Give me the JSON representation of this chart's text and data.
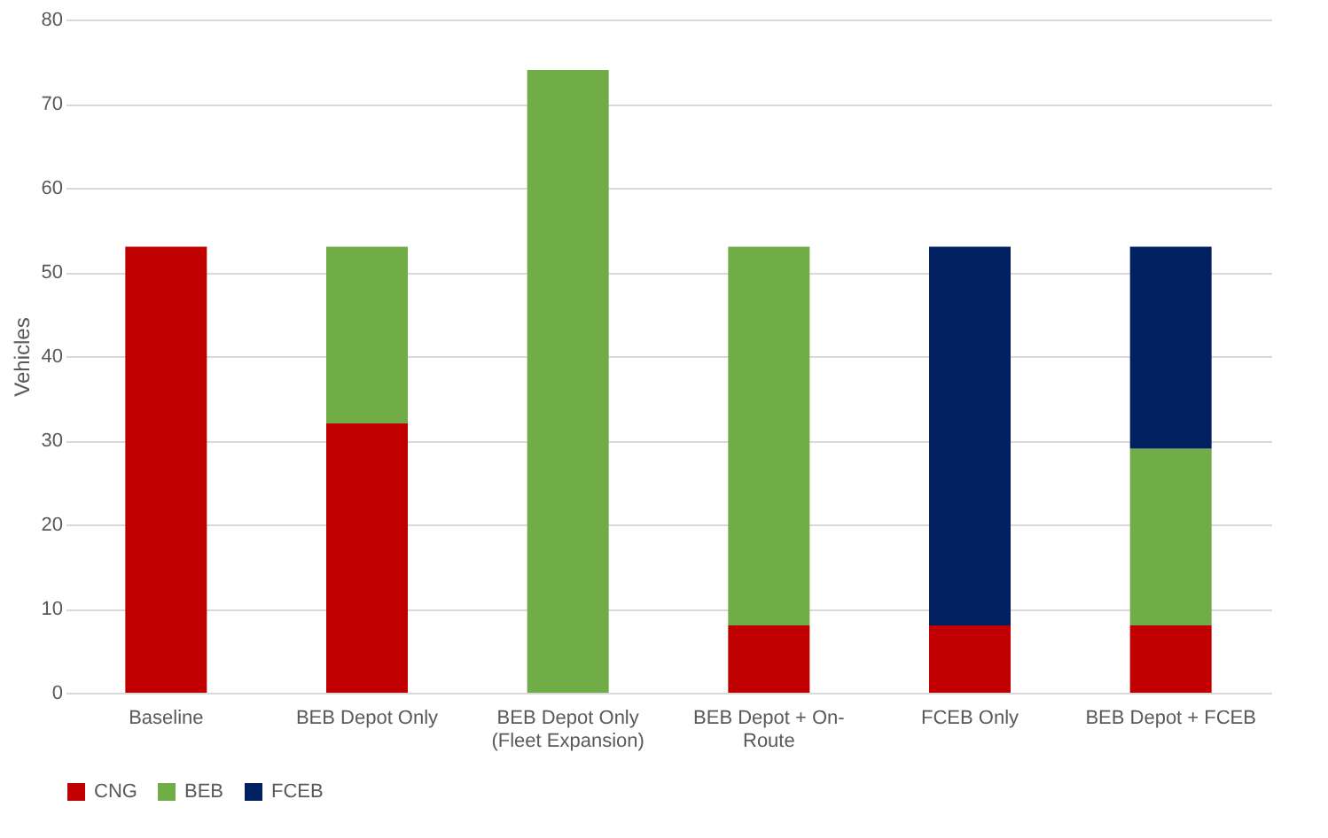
{
  "chart_data": {
    "type": "bar",
    "stacked": true,
    "ylabel": "Vehicles",
    "categories": [
      "Baseline",
      "BEB Depot Only",
      "BEB Depot Only (Fleet Expansion)",
      "BEB Depot + On-Route",
      "FCEB Only",
      "BEB Depot + FCEB"
    ],
    "series": [
      {
        "name": "CNG",
        "color": "#c00000",
        "values": [
          53,
          32,
          null,
          8,
          8,
          8
        ]
      },
      {
        "name": "BEB",
        "color": "#70ad47",
        "values": [
          null,
          21,
          74,
          45,
          null,
          21
        ]
      },
      {
        "name": "FCEB",
        "color": "#002060",
        "values": [
          null,
          null,
          null,
          null,
          45,
          24
        ]
      }
    ],
    "ylim": [
      0,
      80
    ],
    "yticks": [
      0,
      10,
      20,
      30,
      40,
      50,
      60,
      70,
      80
    ],
    "grid": "y",
    "legend": "bottom"
  }
}
